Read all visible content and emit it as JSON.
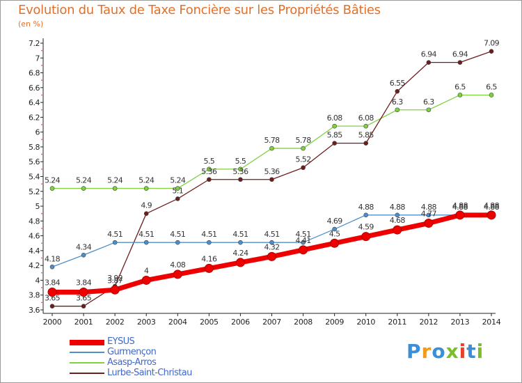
{
  "header": {
    "title": "Evolution du Taux de Taxe Foncière sur les Propriétés Bâties",
    "unit": "(en %)"
  },
  "brand": {
    "letters": [
      "P",
      "r",
      "o",
      "x",
      "i",
      "t",
      "i"
    ],
    "colors": [
      "#3a8fd9",
      "#f29a1b",
      "#3a8fd9",
      "#7cbd2a",
      "#e8402a",
      "#3a8fd9",
      "#7cbd2a"
    ]
  },
  "chart_data": {
    "type": "line",
    "x": [
      "2000",
      "2001",
      "2002",
      "2003",
      "2004",
      "2005",
      "2006",
      "2007",
      "2008",
      "2009",
      "2010",
      "2011",
      "2012",
      "2013",
      "2014"
    ],
    "ylim": [
      3.6,
      7.2
    ],
    "yticks": [
      "3.6",
      "3.8",
      "4",
      "4.2",
      "4.4",
      "4.6",
      "4.8",
      "5",
      "5.2",
      "5.4",
      "5.6",
      "5.8",
      "6",
      "6.2",
      "6.4",
      "6.6",
      "6.8",
      "7",
      "7.2"
    ],
    "grid": false,
    "legend_position": "bottom-left",
    "series": [
      {
        "name": "EYSUS",
        "color": "#ee0000",
        "values": [
          3.84,
          3.84,
          3.87,
          4,
          4.08,
          4.16,
          4.24,
          4.32,
          4.41,
          4.5,
          4.59,
          4.68,
          4.77,
          4.88,
          4.88
        ],
        "labels": [
          "3.84",
          "3.84",
          "3.87",
          "4",
          "4.08",
          "4.16",
          "4.24",
          "4.32",
          "4.41",
          "4.5",
          "4.59",
          "4.68",
          "4.77",
          "4.88",
          "4.88"
        ]
      },
      {
        "name": "Gurmençon",
        "color": "#4f8fc9",
        "values": [
          4.18,
          4.34,
          4.51,
          4.51,
          4.51,
          4.51,
          4.51,
          4.51,
          4.51,
          4.69,
          4.88,
          4.88,
          4.88,
          4.88,
          4.88
        ],
        "labels": [
          "4.18",
          "4.34",
          "4.51",
          "4.51",
          "4.51",
          "4.51",
          "4.51",
          "4.51",
          "4.51",
          "4.69",
          "4.88",
          "4.88",
          "4.88",
          "4.88",
          "4.88"
        ]
      },
      {
        "name": "Asasp-Arros",
        "color": "#7ed23c",
        "values": [
          5.24,
          5.24,
          5.24,
          5.24,
          5.24,
          5.5,
          5.5,
          5.78,
          5.78,
          6.08,
          6.08,
          6.3,
          6.3,
          6.5,
          6.5
        ],
        "labels": [
          "5.24",
          "5.24",
          "5.24",
          "5.24",
          "5.24",
          "5.5",
          "5.5",
          "5.78",
          "5.78",
          "6.08",
          "6.08",
          "6.3",
          "6.3",
          "6.5",
          "6.5"
        ]
      },
      {
        "name": "Lurbe-Saint-Christau",
        "color": "#6e1d1d",
        "values": [
          3.65,
          3.65,
          3.92,
          4.9,
          5.1,
          5.36,
          5.36,
          5.36,
          5.52,
          5.85,
          5.85,
          6.55,
          6.94,
          6.94,
          7.09
        ],
        "labels": [
          "3.65",
          "3.65",
          "3.92",
          "4.9",
          "5.1",
          "5.36",
          "5.36",
          "5.36",
          "5.52",
          "5.85",
          "5.85",
          "6.55",
          "6.94",
          "6.94",
          "7.09"
        ]
      }
    ]
  }
}
